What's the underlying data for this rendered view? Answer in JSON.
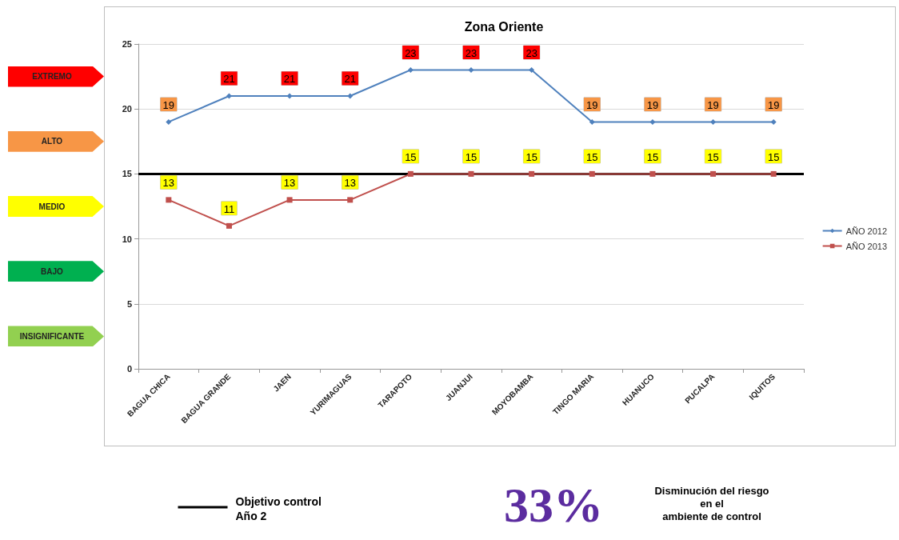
{
  "chart_data": {
    "type": "line",
    "title": "Zona Oriente",
    "categories": [
      "BAGUA CHICA",
      "BAGUA GRANDE",
      "JAEN",
      "YURIMAGUAS",
      "TARAPOTO",
      "JUANJUI",
      "MOYOBAMBA",
      "TINGO MARIA",
      "HUANUCO",
      "PUCALPA",
      "IQUITOS"
    ],
    "series": [
      {
        "name": "AÑO 2012",
        "color": "#4f81bd",
        "marker": "diamond",
        "values": [
          19,
          21,
          21,
          21,
          23,
          23,
          23,
          19,
          19,
          19,
          19
        ]
      },
      {
        "name": "AÑO 2013",
        "color": "#c0504d",
        "marker": "square",
        "values": [
          13,
          11,
          13,
          13,
          15,
          15,
          15,
          15,
          15,
          15,
          15
        ]
      }
    ],
    "ylim": [
      0,
      25
    ],
    "yticks": [
      0,
      5,
      10,
      15,
      20,
      25
    ],
    "grid": "y",
    "legend": "right",
    "data_labels": true,
    "ref_lines": [
      {
        "axis": "y",
        "value": 15,
        "label": "Objetivo control\nAño 2",
        "color": "#000000"
      }
    ],
    "annotations": [
      "EXTREMO",
      "ALTO",
      "MEDIO",
      "BAJO",
      "INSIGNIFICANTE",
      "33%",
      "Disminución del riesgo\nen el\nambiente de control"
    ]
  }
}
